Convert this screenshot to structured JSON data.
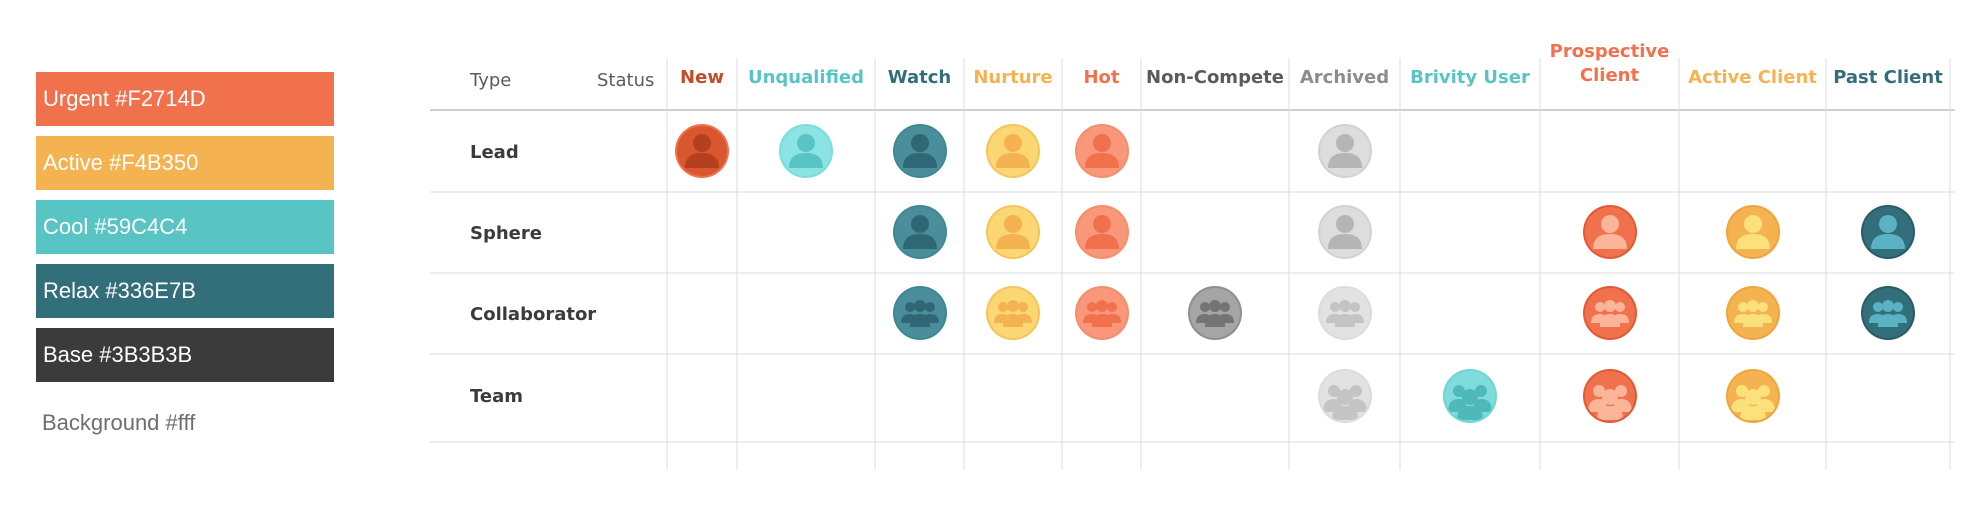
{
  "legend": {
    "swatches": [
      {
        "label": "Urgent #F2714D",
        "color": "#F2714D"
      },
      {
        "label": "Active #F4B350",
        "color": "#F4B350"
      },
      {
        "label": "Cool #59C4C4",
        "color": "#59C4C4"
      },
      {
        "label": "Relax #336E7B",
        "color": "#336E7B"
      },
      {
        "label": "Base #3B3B3B",
        "color": "#3B3B3B"
      }
    ],
    "background_label": "Background #fff"
  },
  "matrix": {
    "type_header": "Type",
    "status_header": "Status",
    "columns": [
      {
        "label": "New",
        "color": "#C24D2A"
      },
      {
        "label": "Unqualified",
        "color": "#59C4C4"
      },
      {
        "label": "Watch",
        "color": "#336E7B"
      },
      {
        "label": "Nurture",
        "color": "#F4B350"
      },
      {
        "label": "Hot",
        "color": "#F2714D"
      },
      {
        "label": "Non-Compete",
        "color": "#5B5B5B"
      },
      {
        "label": "Archived",
        "color": "#8C8C8C"
      },
      {
        "label": "Brivity User",
        "color": "#59C4C4"
      },
      {
        "label": "Prospective Client",
        "color": "#F2714D"
      },
      {
        "label": "Active Client",
        "color": "#F4B350"
      },
      {
        "label": "Past Client",
        "color": "#336E7B"
      }
    ],
    "rows": [
      {
        "label": "Lead",
        "icon": "person",
        "cells": [
          {
            "col": 0,
            "style": "new"
          },
          {
            "col": 1,
            "style": "unqualified"
          },
          {
            "col": 2,
            "style": "watch"
          },
          {
            "col": 3,
            "style": "nurture"
          },
          {
            "col": 4,
            "style": "hot"
          },
          {
            "col": 6,
            "style": "archived"
          }
        ]
      },
      {
        "label": "Sphere",
        "icon": "person",
        "cells": [
          {
            "col": 2,
            "style": "watch"
          },
          {
            "col": 3,
            "style": "nurture"
          },
          {
            "col": 4,
            "style": "hot"
          },
          {
            "col": 6,
            "style": "archived"
          },
          {
            "col": 8,
            "style": "prospective"
          },
          {
            "col": 9,
            "style": "active"
          },
          {
            "col": 10,
            "style": "past"
          }
        ]
      },
      {
        "label": "Collaborator",
        "icon": "group",
        "cells": [
          {
            "col": 2,
            "style": "watch"
          },
          {
            "col": 3,
            "style": "nurture"
          },
          {
            "col": 4,
            "style": "hot"
          },
          {
            "col": 5,
            "style": "noncompete"
          },
          {
            "col": 6,
            "style": "archived_light"
          },
          {
            "col": 8,
            "style": "prospective"
          },
          {
            "col": 9,
            "style": "active"
          },
          {
            "col": 10,
            "style": "past"
          }
        ]
      },
      {
        "label": "Team",
        "icon": "team",
        "cells": [
          {
            "col": 6,
            "style": "archived_light"
          },
          {
            "col": 7,
            "style": "brivity"
          },
          {
            "col": 8,
            "style": "prospective"
          },
          {
            "col": 9,
            "style": "active"
          }
        ]
      }
    ],
    "styles": {
      "new": {
        "ring": "#F2714D",
        "bg": "#D9572F",
        "fg": "#B5401F"
      },
      "unqualified": {
        "ring": "#7BDDDD",
        "bg": "#8BE3E3",
        "fg": "#59C4C4"
      },
      "watch": {
        "ring": "#3F8795",
        "bg": "#4A8E9C",
        "fg": "#2F6774"
      },
      "nurture": {
        "ring": "#F6C45A",
        "bg": "#FBD774",
        "fg": "#F4B350"
      },
      "hot": {
        "ring": "#F58E6D",
        "bg": "#F8977A",
        "fg": "#F2714D"
      },
      "noncompete": {
        "ring": "#8F8F8F",
        "bg": "#A5A5A5",
        "fg": "#747474"
      },
      "archived": {
        "ring": "#D2D2D2",
        "bg": "#DDDDDD",
        "fg": "#B5B5B5"
      },
      "archived_light": {
        "ring": "#DCDCDC",
        "bg": "#E2E2E2",
        "fg": "#C4C4C4"
      },
      "brivity": {
        "ring": "#6FD6D6",
        "bg": "#7FDCDC",
        "fg": "#4FB8B8"
      },
      "prospective": {
        "ring": "#E05A36",
        "bg": "#F2714D",
        "fg": "#FBB598"
      },
      "active": {
        "ring": "#EFA53E",
        "bg": "#F4B350",
        "fg": "#FBE07C"
      },
      "past": {
        "ring": "#2A5C67",
        "bg": "#336E7B",
        "fg": "#59B3C4"
      }
    }
  }
}
